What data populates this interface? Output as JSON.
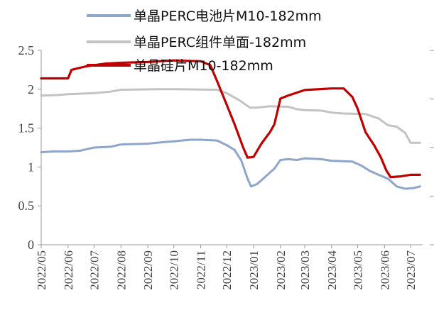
{
  "chart_data": {
    "type": "line",
    "legend_position": "top",
    "grid": false,
    "y_left": {
      "min": 0,
      "max": 2.5,
      "ticks": [
        "0",
        "0.5",
        "1",
        "1.5",
        "2",
        "2.5"
      ]
    },
    "y_right": {
      "min": 0,
      "max": 4,
      "ticks": [
        "",
        "",
        "",
        "",
        ""
      ]
    },
    "x_labels": [
      "2022/05",
      "2022/06",
      "2022/07",
      "2022/08",
      "2022/09",
      "2022/10",
      "2022/11",
      "2022/12",
      "2023/01",
      "2023/02",
      "2023/03",
      "2023/04",
      "2023/05",
      "2023/06",
      "2023/07"
    ],
    "series": [
      {
        "name": "单晶PERC电池片M10-182mm",
        "color": "#8ea6cc",
        "axis": "left",
        "points": [
          [
            "2022/05/01",
            1.19
          ],
          [
            "2022/05/15",
            1.2
          ],
          [
            "2022/06/01",
            1.2
          ],
          [
            "2022/06/15",
            1.21
          ],
          [
            "2022/07/01",
            1.25
          ],
          [
            "2022/07/20",
            1.26
          ],
          [
            "2022/08/01",
            1.29
          ],
          [
            "2022/09/01",
            1.3
          ],
          [
            "2022/09/20",
            1.32
          ],
          [
            "2022/10/01",
            1.33
          ],
          [
            "2022/10/20",
            1.35
          ],
          [
            "2022/11/01",
            1.35
          ],
          [
            "2022/11/20",
            1.34
          ],
          [
            "2022/12/01",
            1.28
          ],
          [
            "2022/12/10",
            1.22
          ],
          [
            "2022/12/18",
            1.08
          ],
          [
            "2022/12/25",
            0.85
          ],
          [
            "2022/12/29",
            0.75
          ],
          [
            "2023/01/05",
            0.78
          ],
          [
            "2023/01/15",
            0.88
          ],
          [
            "2023/01/25",
            0.98
          ],
          [
            "2023/02/01",
            1.09
          ],
          [
            "2023/02/10",
            1.1
          ],
          [
            "2023/02/20",
            1.09
          ],
          [
            "2023/03/01",
            1.11
          ],
          [
            "2023/03/20",
            1.1
          ],
          [
            "2023/04/01",
            1.08
          ],
          [
            "2023/04/25",
            1.07
          ],
          [
            "2023/05/05",
            1.02
          ],
          [
            "2023/05/15",
            0.95
          ],
          [
            "2023/05/25",
            0.9
          ],
          [
            "2023/06/05",
            0.85
          ],
          [
            "2023/06/15",
            0.75
          ],
          [
            "2023/06/25",
            0.72
          ],
          [
            "2023/07/05",
            0.73
          ],
          [
            "2023/07/12",
            0.75
          ]
        ]
      },
      {
        "name": "单晶PERC组件单面-182mm",
        "color": "#c3c3c3",
        "axis": "right",
        "points": [
          [
            "2022/05/01",
            3.07
          ],
          [
            "2022/05/20",
            3.08
          ],
          [
            "2022/06/01",
            3.1
          ],
          [
            "2022/07/01",
            3.12
          ],
          [
            "2022/07/20",
            3.15
          ],
          [
            "2022/08/01",
            3.19
          ],
          [
            "2022/09/15",
            3.2
          ],
          [
            "2022/10/01",
            3.2
          ],
          [
            "2022/11/20",
            3.19
          ],
          [
            "2022/12/01",
            3.12
          ],
          [
            "2022/12/15",
            2.98
          ],
          [
            "2022/12/28",
            2.82
          ],
          [
            "2023/01/05",
            2.82
          ],
          [
            "2023/01/20",
            2.85
          ],
          [
            "2023/02/10",
            2.84
          ],
          [
            "2023/02/20",
            2.79
          ],
          [
            "2023/03/01",
            2.77
          ],
          [
            "2023/03/20",
            2.76
          ],
          [
            "2023/04/01",
            2.72
          ],
          [
            "2023/04/15",
            2.7
          ],
          [
            "2023/05/10",
            2.69
          ],
          [
            "2023/05/25",
            2.6
          ],
          [
            "2023/06/05",
            2.46
          ],
          [
            "2023/06/15",
            2.43
          ],
          [
            "2023/06/25",
            2.3
          ],
          [
            "2023/07/01",
            2.1
          ],
          [
            "2023/07/12",
            2.1
          ]
        ]
      },
      {
        "name": "单晶硅片M10-182mm",
        "color": "#c00000",
        "axis": "left",
        "points": [
          [
            "2022/05/01",
            2.14
          ],
          [
            "2022/06/01",
            2.14
          ],
          [
            "2022/06/05",
            2.25
          ],
          [
            "2022/06/20",
            2.29
          ],
          [
            "2022/07/01",
            2.31
          ],
          [
            "2022/07/15",
            2.33
          ],
          [
            "2022/08/01",
            2.34
          ],
          [
            "2022/09/01",
            2.35
          ],
          [
            "2022/10/01",
            2.37
          ],
          [
            "2022/11/01",
            2.36
          ],
          [
            "2022/11/12",
            2.31
          ],
          [
            "2022/11/20",
            2.1
          ],
          [
            "2022/12/01",
            1.8
          ],
          [
            "2022/12/10",
            1.55
          ],
          [
            "2022/12/20",
            1.25
          ],
          [
            "2022/12/25",
            1.12
          ],
          [
            "2023/01/01",
            1.13
          ],
          [
            "2023/01/10",
            1.3
          ],
          [
            "2023/01/20",
            1.45
          ],
          [
            "2023/01/25",
            1.55
          ],
          [
            "2023/02/01",
            1.88
          ],
          [
            "2023/02/10",
            1.92
          ],
          [
            "2023/03/01",
            1.99
          ],
          [
            "2023/04/01",
            2.01
          ],
          [
            "2023/04/15",
            2.01
          ],
          [
            "2023/04/25",
            1.9
          ],
          [
            "2023/05/01",
            1.75
          ],
          [
            "2023/05/10",
            1.45
          ],
          [
            "2023/05/20",
            1.28
          ],
          [
            "2023/05/28",
            1.12
          ],
          [
            "2023/06/03",
            0.96
          ],
          [
            "2023/06/08",
            0.87
          ],
          [
            "2023/06/20",
            0.88
          ],
          [
            "2023/07/01",
            0.9
          ],
          [
            "2023/07/12",
            0.9
          ]
        ]
      }
    ]
  }
}
